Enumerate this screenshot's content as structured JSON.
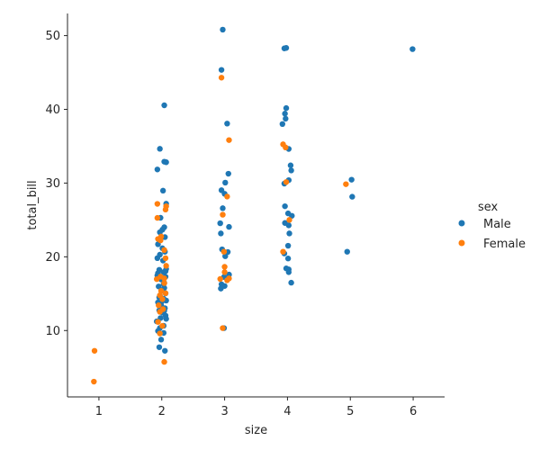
{
  "chart_data": {
    "type": "scatter",
    "subtype": "strip",
    "title": "",
    "xlabel": "size",
    "ylabel": "total_bill",
    "x_categories": [
      "1",
      "2",
      "3",
      "4",
      "5",
      "6"
    ],
    "xlim": [
      0.5,
      6.5
    ],
    "ylim": [
      1.0,
      53.0
    ],
    "yticks": [
      10,
      20,
      30,
      40,
      50
    ],
    "grid": false,
    "legend": {
      "title": "sex",
      "placement": "right",
      "entries": [
        "Male",
        "Female"
      ]
    },
    "series": [
      {
        "name": "Male",
        "color": "#1f77b4",
        "points": [
          [
            2.04,
            40.55
          ],
          [
            1.97,
            34.65
          ],
          [
            1.93,
            31.85
          ],
          [
            2.04,
            32.9
          ],
          [
            2.07,
            32.83
          ],
          [
            2.02,
            28.97
          ],
          [
            2.07,
            27.2
          ],
          [
            1.98,
            25.29
          ],
          [
            2.04,
            24.01
          ],
          [
            2.01,
            23.68
          ],
          [
            1.97,
            23.33
          ],
          [
            2.05,
            22.67
          ],
          [
            1.94,
            21.7
          ],
          [
            2.01,
            21.16
          ],
          [
            2.05,
            20.69
          ],
          [
            1.97,
            20.29
          ],
          [
            1.93,
            19.82
          ],
          [
            2.02,
            19.49
          ],
          [
            2.07,
            18.35
          ],
          [
            1.96,
            18.24
          ],
          [
            2.03,
            17.92
          ],
          [
            1.94,
            17.78
          ],
          [
            2.06,
            17.29
          ],
          [
            1.99,
            16.93
          ],
          [
            2.03,
            16.31
          ],
          [
            1.95,
            15.98
          ],
          [
            2.04,
            15.77
          ],
          [
            2.0,
            15.42
          ],
          [
            2.06,
            15.04
          ],
          [
            1.97,
            14.73
          ],
          [
            2.03,
            14.31
          ],
          [
            2.07,
            14.07
          ],
          [
            1.94,
            13.81
          ],
          [
            1.99,
            13.42
          ],
          [
            2.05,
            13.03
          ],
          [
            1.96,
            12.74
          ],
          [
            2.01,
            12.43
          ],
          [
            2.06,
            12.03
          ],
          [
            1.98,
            11.69
          ],
          [
            2.07,
            11.59
          ],
          [
            1.92,
            11.24
          ],
          [
            2.03,
            10.65
          ],
          [
            1.97,
            10.34
          ],
          [
            1.94,
            9.94
          ],
          [
            2.03,
            9.68
          ],
          [
            1.99,
            8.77
          ],
          [
            1.96,
            7.74
          ],
          [
            2.05,
            7.25
          ],
          [
            2.0,
            13.94
          ],
          [
            2.04,
            16.45
          ],
          [
            1.96,
            14.48
          ],
          [
            2.06,
            18.04
          ],
          [
            1.93,
            17.47
          ],
          [
            2.02,
            15.53
          ],
          [
            2.04,
            12.69
          ],
          [
            2.97,
            50.81
          ],
          [
            2.95,
            45.35
          ],
          [
            3.04,
            38.07
          ],
          [
            3.06,
            31.27
          ],
          [
            3.01,
            30.06
          ],
          [
            2.95,
            29.03
          ],
          [
            3.0,
            28.55
          ],
          [
            2.97,
            26.59
          ],
          [
            2.93,
            24.55
          ],
          [
            3.07,
            24.06
          ],
          [
            2.94,
            23.17
          ],
          [
            2.96,
            21.01
          ],
          [
            3.05,
            20.65
          ],
          [
            3.01,
            20.08
          ],
          [
            2.99,
            17.26
          ],
          [
            3.07,
            17.59
          ],
          [
            2.95,
            16.27
          ],
          [
            3.0,
            16.04
          ],
          [
            2.94,
            15.69
          ],
          [
            2.99,
            10.33
          ],
          [
            3.95,
            48.27
          ],
          [
            3.98,
            48.33
          ],
          [
            3.98,
            40.17
          ],
          [
            3.96,
            39.42
          ],
          [
            3.97,
            38.73
          ],
          [
            3.92,
            38.01
          ],
          [
            4.02,
            34.63
          ],
          [
            4.05,
            32.4
          ],
          [
            4.06,
            31.71
          ],
          [
            4.02,
            30.4
          ],
          [
            3.95,
            29.93
          ],
          [
            3.96,
            26.86
          ],
          [
            4.07,
            25.56
          ],
          [
            4.01,
            25.89
          ],
          [
            3.96,
            24.59
          ],
          [
            4.02,
            24.27
          ],
          [
            4.03,
            23.17
          ],
          [
            4.01,
            21.5
          ],
          [
            3.95,
            20.45
          ],
          [
            4.01,
            19.77
          ],
          [
            3.98,
            18.43
          ],
          [
            4.02,
            18.29
          ],
          [
            4.02,
            17.92
          ],
          [
            4.06,
            16.49
          ],
          [
            5.02,
            30.46
          ],
          [
            5.03,
            28.15
          ],
          [
            4.95,
            20.69
          ],
          [
            5.99,
            48.17
          ]
        ]
      },
      {
        "name": "Female",
        "color": "#ff7f0e",
        "points": [
          [
            0.93,
            7.25
          ],
          [
            0.92,
            3.07
          ],
          [
            1.93,
            27.18
          ],
          [
            2.07,
            26.86
          ],
          [
            2.06,
            26.41
          ],
          [
            1.93,
            25.28
          ],
          [
            1.94,
            22.42
          ],
          [
            1.98,
            22.23
          ],
          [
            2.04,
            20.92
          ],
          [
            2.06,
            19.81
          ],
          [
            2.07,
            18.78
          ],
          [
            1.98,
            17.31
          ],
          [
            1.92,
            16.97
          ],
          [
            2.04,
            16.43
          ],
          [
            1.99,
            15.38
          ],
          [
            2.06,
            15.06
          ],
          [
            1.97,
            14.78
          ],
          [
            2.01,
            14.26
          ],
          [
            1.95,
            13.42
          ],
          [
            2.02,
            12.9
          ],
          [
            1.97,
            12.54
          ],
          [
            1.94,
            11.17
          ],
          [
            2.01,
            10.63
          ],
          [
            1.97,
            9.6
          ],
          [
            2.04,
            5.75
          ],
          [
            1.99,
            22.75
          ],
          [
            2.04,
            17.07
          ],
          [
            2.95,
            44.3
          ],
          [
            3.07,
            35.83
          ],
          [
            3.04,
            28.17
          ],
          [
            2.97,
            25.71
          ],
          [
            2.99,
            20.69
          ],
          [
            3.0,
            18.64
          ],
          [
            3.0,
            17.92
          ],
          [
            2.93,
            16.99
          ],
          [
            3.07,
            17.07
          ],
          [
            3.04,
            16.82
          ],
          [
            2.97,
            10.33
          ],
          [
            3.93,
            35.26
          ],
          [
            3.97,
            34.83
          ],
          [
            3.98,
            30.14
          ],
          [
            4.03,
            25.0
          ],
          [
            3.93,
            20.69
          ],
          [
            4.93,
            29.85
          ]
        ]
      }
    ]
  }
}
